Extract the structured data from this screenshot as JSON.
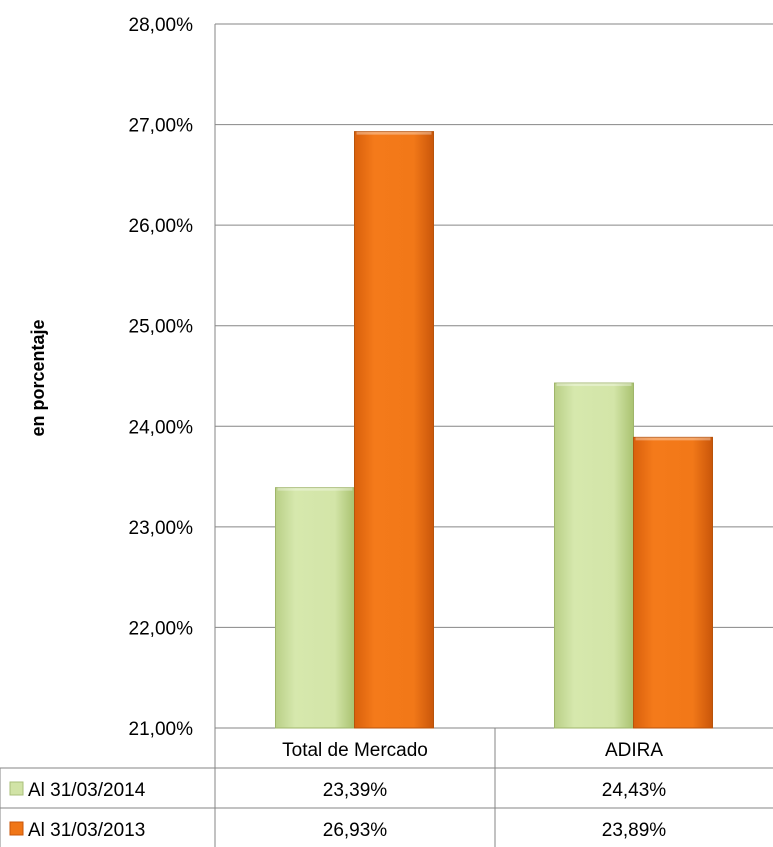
{
  "chart_data": {
    "type": "bar",
    "ylabel": "en porcentaje",
    "ylim": [
      21,
      28
    ],
    "yticks": [
      21,
      22,
      23,
      24,
      25,
      26,
      27,
      28
    ],
    "ytick_labels": [
      "21,00%",
      "22,00%",
      "23,00%",
      "24,00%",
      "25,00%",
      "26,00%",
      "27,00%",
      "28,00%"
    ],
    "categories": [
      "Total de Mercado",
      "ADIRA"
    ],
    "grid": true,
    "legend": "data-table",
    "series": [
      {
        "name": "Al 31/03/2014",
        "values": [
          23.39,
          24.43
        ],
        "labels": [
          "23,39%",
          "24,43%"
        ],
        "color": "#d1e3a6"
      },
      {
        "name": "Al 31/03/2013",
        "values": [
          26.93,
          23.89
        ],
        "labels": [
          "26,93%",
          "23,89%"
        ],
        "color": "#f07617"
      }
    ]
  }
}
